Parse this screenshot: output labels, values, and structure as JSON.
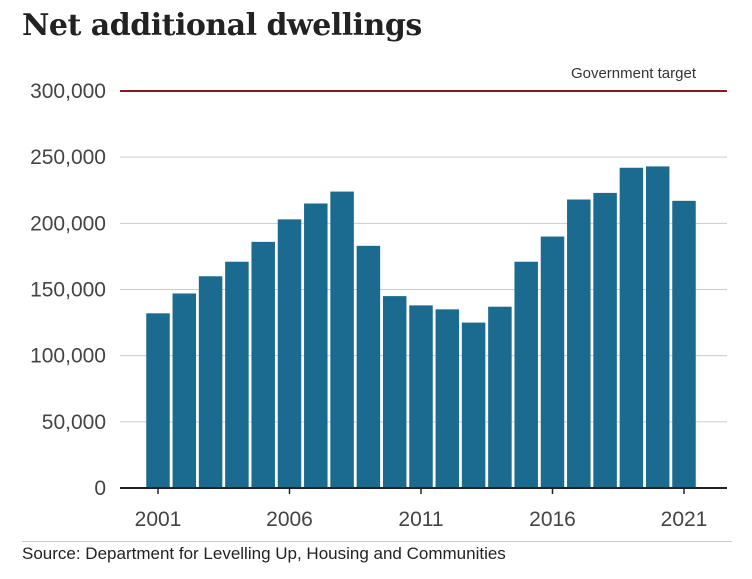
{
  "chart_data": {
    "type": "bar",
    "title": "Net additional dwellings",
    "source": "Source: Department for Levelling Up, Housing and Communities",
    "x": [
      2001,
      2002,
      2003,
      2004,
      2005,
      2006,
      2007,
      2008,
      2009,
      2010,
      2011,
      2012,
      2013,
      2014,
      2015,
      2016,
      2017,
      2018,
      2019,
      2020,
      2021
    ],
    "values": [
      132000,
      147000,
      160000,
      171000,
      186000,
      203000,
      215000,
      224000,
      183000,
      145000,
      138000,
      135000,
      125000,
      137000,
      171000,
      190000,
      218000,
      223000,
      242000,
      243000,
      217000
    ],
    "x_tick_labels": [
      "2001",
      "2006",
      "2011",
      "2016",
      "2021"
    ],
    "y_tick_labels": [
      "0",
      "50,000",
      "100,000",
      "150,000",
      "200,000",
      "250,000",
      "300,000"
    ],
    "ylim": [
      0,
      300000
    ],
    "reference_line": {
      "label": "Government target",
      "value": 300000,
      "color": "#8b1a1a"
    },
    "bar_color": "#1a6b8f",
    "grid": true
  }
}
